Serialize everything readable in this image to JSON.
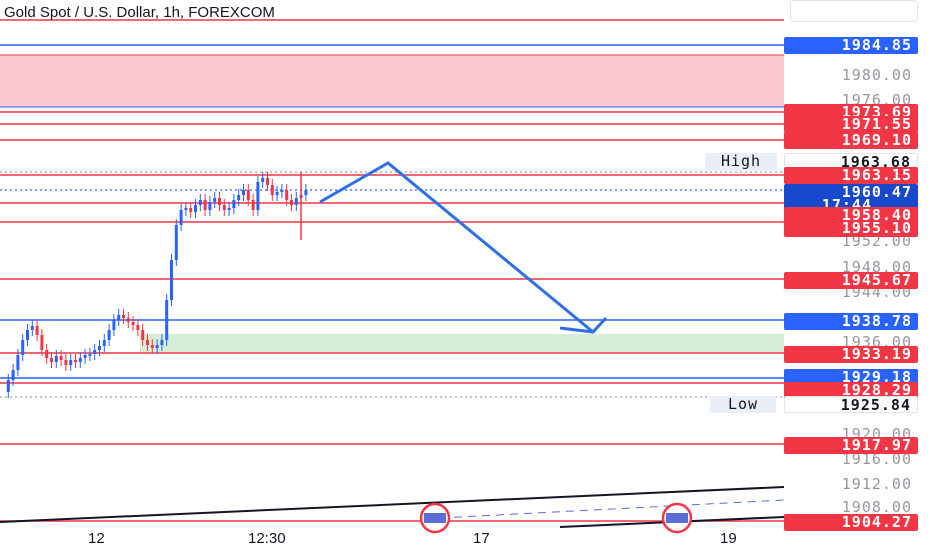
{
  "title": "Gold Spot / U.S. Dollar, 1h, FOREXCOM",
  "colors": {
    "red": "#f23645",
    "blue": "#2962ff",
    "line_blue": "#2f6fe6",
    "zone_red": "#f8c8cc",
    "zone_green": "#d6eed6"
  },
  "price_tags": [
    {
      "id": "p1984",
      "text": "1984.85",
      "color": "#2962ff"
    },
    {
      "id": "p1973",
      "text": "1973.69",
      "color": "#f23645"
    },
    {
      "id": "p1971",
      "text": "1971.55",
      "color": "#f23645"
    },
    {
      "id": "p1969",
      "text": "1969.10",
      "color": "#f23645"
    },
    {
      "id": "p1963h",
      "text": "1963.68",
      "color": "#ffffff"
    },
    {
      "id": "p1963",
      "text": "1963.15",
      "color": "#f23645"
    },
    {
      "id": "pcur",
      "text": "1960.47",
      "color": "#1848cc"
    },
    {
      "id": "ptime",
      "text": "17:44",
      "color": "#1848cc"
    },
    {
      "id": "p1958",
      "text": "1958.40",
      "color": "#f23645"
    },
    {
      "id": "p1955",
      "text": "1955.10",
      "color": "#f23645"
    },
    {
      "id": "p1945",
      "text": "1945.67",
      "color": "#f23645"
    },
    {
      "id": "p1938",
      "text": "1938.78",
      "color": "#2962ff"
    },
    {
      "id": "p1933",
      "text": "1933.19",
      "color": "#f23645"
    },
    {
      "id": "p1929",
      "text": "1929.18",
      "color": "#2962ff"
    },
    {
      "id": "p1928",
      "text": "1928.29",
      "color": "#f23645"
    },
    {
      "id": "p1925",
      "text": "1925.84",
      "color": "#ffffff"
    },
    {
      "id": "p1917",
      "text": "1917.97",
      "color": "#f23645"
    },
    {
      "id": "p1904",
      "text": "1904.27",
      "color": "#f23645"
    }
  ],
  "scale_labels": [
    "1980.00",
    "1976.00",
    "1952.00",
    "1948.00",
    "1944.00",
    "1936.00",
    "1920.00",
    "1916.00",
    "1912.00",
    "1908.00"
  ],
  "high_label": "High",
  "low_label": "Low",
  "time_labels": [
    "12",
    "12:30",
    "17",
    "19"
  ]
}
